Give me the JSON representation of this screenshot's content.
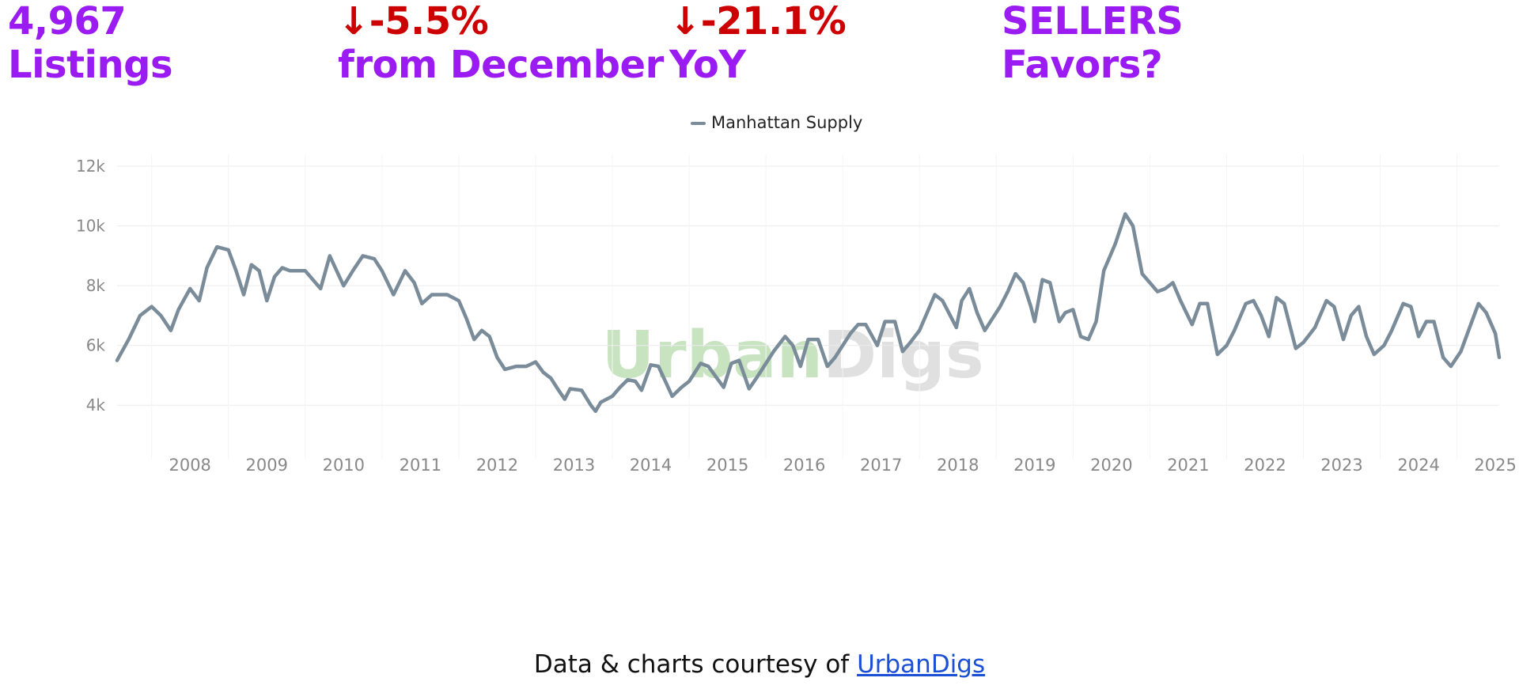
{
  "header": {
    "listings": {
      "value": "4,967",
      "label": "Listings",
      "color": "#9b1cf2"
    },
    "mom": {
      "value": "↓-5.5%",
      "label": "from December",
      "value_color": "#cc0000",
      "label_color": "#9b1cf2"
    },
    "yoy": {
      "value": "↓-21.1%",
      "label": "YoY",
      "value_color": "#cc0000",
      "label_color": "#9b1cf2"
    },
    "market": {
      "value": "SELLERS",
      "label": "Favors?",
      "color": "#9b1cf2"
    }
  },
  "chart_data": {
    "type": "line",
    "legend": {
      "position": "top-center",
      "entries": [
        "Manhattan Supply"
      ]
    },
    "watermark": {
      "text_left": "Urban",
      "text_right": "Digs",
      "color_left": "#c8e3c0",
      "color_right": "#e0e0e0"
    },
    "x_ticks": [
      "2008",
      "2009",
      "2010",
      "2011",
      "2012",
      "2013",
      "2014",
      "2015",
      "2016",
      "2017",
      "2018",
      "2019",
      "2020",
      "2021",
      "2022",
      "2023",
      "2024",
      "2025"
    ],
    "y_ticks": [
      {
        "value": 4000,
        "label": "4k"
      },
      {
        "value": 6000,
        "label": "6k"
      },
      {
        "value": 8000,
        "label": "8k"
      },
      {
        "value": 10000,
        "label": "10k"
      },
      {
        "value": 12000,
        "label": "12k"
      }
    ],
    "ylim": [
      3000,
      12400
    ],
    "xlim": [
      2007.55,
      2025.55
    ],
    "grid": true,
    "series": [
      {
        "name": "Manhattan Supply",
        "color": "#7a8c99",
        "points": [
          [
            2007.55,
            5500
          ],
          [
            2007.7,
            6200
          ],
          [
            2007.85,
            7000
          ],
          [
            2008.0,
            7300
          ],
          [
            2008.12,
            7000
          ],
          [
            2008.25,
            6500
          ],
          [
            2008.35,
            7200
          ],
          [
            2008.5,
            7900
          ],
          [
            2008.62,
            7500
          ],
          [
            2008.72,
            8600
          ],
          [
            2008.85,
            9300
          ],
          [
            2009.0,
            9200
          ],
          [
            2009.1,
            8500
          ],
          [
            2009.2,
            7700
          ],
          [
            2009.3,
            8700
          ],
          [
            2009.4,
            8500
          ],
          [
            2009.5,
            7500
          ],
          [
            2009.6,
            8300
          ],
          [
            2009.7,
            8600
          ],
          [
            2009.8,
            8500
          ],
          [
            2009.9,
            8500
          ],
          [
            2010.0,
            8500
          ],
          [
            2010.2,
            7900
          ],
          [
            2010.32,
            9000
          ],
          [
            2010.5,
            8000
          ],
          [
            2010.62,
            8500
          ],
          [
            2010.75,
            9000
          ],
          [
            2010.9,
            8900
          ],
          [
            2011.0,
            8500
          ],
          [
            2011.15,
            7700
          ],
          [
            2011.3,
            8500
          ],
          [
            2011.42,
            8100
          ],
          [
            2011.52,
            7400
          ],
          [
            2011.65,
            7700
          ],
          [
            2011.85,
            7700
          ],
          [
            2012.0,
            7500
          ],
          [
            2012.1,
            6900
          ],
          [
            2012.2,
            6200
          ],
          [
            2012.3,
            6500
          ],
          [
            2012.4,
            6300
          ],
          [
            2012.5,
            5600
          ],
          [
            2012.6,
            5200
          ],
          [
            2012.75,
            5300
          ],
          [
            2012.88,
            5300
          ],
          [
            2013.0,
            5450
          ],
          [
            2013.1,
            5100
          ],
          [
            2013.2,
            4900
          ],
          [
            2013.3,
            4500
          ],
          [
            2013.38,
            4200
          ],
          [
            2013.45,
            4550
          ],
          [
            2013.6,
            4500
          ],
          [
            2013.72,
            4000
          ],
          [
            2013.78,
            3800
          ],
          [
            2013.85,
            4100
          ],
          [
            2014.0,
            4300
          ],
          [
            2014.1,
            4600
          ],
          [
            2014.2,
            4850
          ],
          [
            2014.3,
            4800
          ],
          [
            2014.38,
            4500
          ],
          [
            2014.5,
            5350
          ],
          [
            2014.6,
            5300
          ],
          [
            2014.7,
            4750
          ],
          [
            2014.78,
            4300
          ],
          [
            2014.9,
            4600
          ],
          [
            2015.0,
            4800
          ],
          [
            2015.15,
            5400
          ],
          [
            2015.25,
            5300
          ],
          [
            2015.35,
            4950
          ],
          [
            2015.45,
            4600
          ],
          [
            2015.55,
            5400
          ],
          [
            2015.65,
            5500
          ],
          [
            2015.78,
            4550
          ],
          [
            2015.9,
            5000
          ],
          [
            2016.0,
            5400
          ],
          [
            2016.1,
            5800
          ],
          [
            2016.25,
            6300
          ],
          [
            2016.35,
            6000
          ],
          [
            2016.45,
            5300
          ],
          [
            2016.55,
            6200
          ],
          [
            2016.68,
            6200
          ],
          [
            2016.8,
            5300
          ],
          [
            2016.9,
            5600
          ],
          [
            2017.0,
            6000
          ],
          [
            2017.1,
            6400
          ],
          [
            2017.2,
            6700
          ],
          [
            2017.3,
            6700
          ],
          [
            2017.45,
            6000
          ],
          [
            2017.55,
            6800
          ],
          [
            2017.68,
            6800
          ],
          [
            2017.78,
            5800
          ],
          [
            2017.88,
            6100
          ],
          [
            2018.0,
            6500
          ],
          [
            2018.1,
            7100
          ],
          [
            2018.2,
            7700
          ],
          [
            2018.3,
            7500
          ],
          [
            2018.4,
            7000
          ],
          [
            2018.48,
            6600
          ],
          [
            2018.55,
            7500
          ],
          [
            2018.65,
            7900
          ],
          [
            2018.75,
            7100
          ],
          [
            2018.85,
            6500
          ],
          [
            2018.95,
            6900
          ],
          [
            2019.05,
            7300
          ],
          [
            2019.15,
            7800
          ],
          [
            2019.25,
            8400
          ],
          [
            2019.35,
            8100
          ],
          [
            2019.45,
            7300
          ],
          [
            2019.5,
            6800
          ],
          [
            2019.6,
            8200
          ],
          [
            2019.7,
            8100
          ],
          [
            2019.82,
            6800
          ],
          [
            2019.9,
            7100
          ],
          [
            2020.0,
            7200
          ],
          [
            2020.1,
            6300
          ],
          [
            2020.2,
            6200
          ],
          [
            2020.3,
            6800
          ],
          [
            2020.4,
            8500
          ],
          [
            2020.55,
            9400
          ],
          [
            2020.68,
            10400
          ],
          [
            2020.78,
            10000
          ],
          [
            2020.9,
            8400
          ],
          [
            2021.0,
            8100
          ],
          [
            2021.1,
            7800
          ],
          [
            2021.2,
            7900
          ],
          [
            2021.3,
            8100
          ],
          [
            2021.4,
            7500
          ],
          [
            2021.55,
            6700
          ],
          [
            2021.65,
            7400
          ],
          [
            2021.75,
            7400
          ],
          [
            2021.88,
            5700
          ],
          [
            2022.0,
            6000
          ],
          [
            2022.1,
            6500
          ],
          [
            2022.25,
            7400
          ],
          [
            2022.35,
            7500
          ],
          [
            2022.45,
            7000
          ],
          [
            2022.55,
            6300
          ],
          [
            2022.65,
            7600
          ],
          [
            2022.75,
            7400
          ],
          [
            2022.9,
            5900
          ],
          [
            2023.0,
            6100
          ],
          [
            2023.15,
            6600
          ],
          [
            2023.3,
            7500
          ],
          [
            2023.4,
            7300
          ],
          [
            2023.52,
            6200
          ],
          [
            2023.62,
            7000
          ],
          [
            2023.72,
            7300
          ],
          [
            2023.82,
            6300
          ],
          [
            2023.92,
            5700
          ],
          [
            2024.05,
            6000
          ],
          [
            2024.15,
            6500
          ],
          [
            2024.3,
            7400
          ],
          [
            2024.4,
            7300
          ],
          [
            2024.5,
            6300
          ],
          [
            2024.6,
            6800
          ],
          [
            2024.7,
            6800
          ],
          [
            2024.82,
            5600
          ],
          [
            2024.92,
            5300
          ],
          [
            2025.05,
            5800
          ],
          [
            2025.15,
            6500
          ],
          [
            2025.28,
            7400
          ],
          [
            2025.38,
            7100
          ],
          [
            2025.5,
            6400
          ],
          [
            2025.55,
            5600
          ]
        ]
      }
    ]
  },
  "footer": {
    "text": "Data & charts courtesy of ",
    "link_text": "UrbanDigs"
  }
}
